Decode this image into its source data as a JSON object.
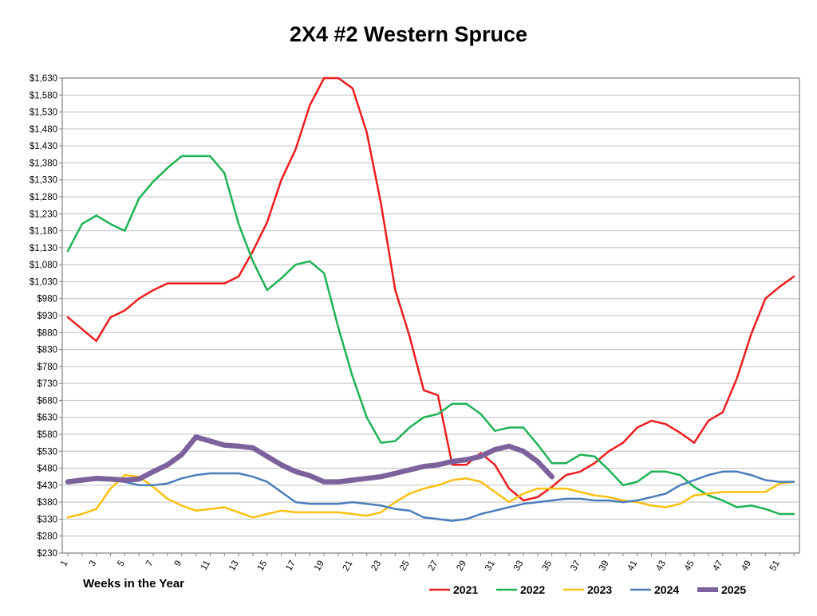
{
  "chart_data": {
    "type": "line",
    "title": "2X4 #2 Western Spruce",
    "xlabel": "Weeks in the Year",
    "ylabel": "",
    "xlim": [
      1,
      52
    ],
    "ylim": [
      230,
      1630
    ],
    "y_tick_step": 50,
    "x_ticks": [
      1,
      3,
      5,
      7,
      9,
      11,
      13,
      15,
      17,
      19,
      21,
      23,
      25,
      27,
      29,
      31,
      33,
      35,
      37,
      39,
      41,
      43,
      45,
      47,
      49,
      51
    ],
    "grid": "horizontal",
    "legend_position": "bottom",
    "series": [
      {
        "name": "2021",
        "color": "#ee1c1c",
        "width": 2.5,
        "x": [
          1,
          3,
          4,
          5,
          6,
          7,
          8,
          9,
          10,
          11,
          12,
          13,
          14,
          15,
          16,
          17,
          18,
          19,
          20,
          21,
          22,
          23,
          24,
          25,
          26,
          27,
          28,
          29,
          30,
          31,
          32,
          33,
          34,
          35,
          36,
          37,
          38,
          39,
          40,
          41,
          42,
          43,
          44,
          45,
          46,
          47,
          48,
          49,
          50,
          51,
          52
        ],
        "values": [
          925,
          855,
          925,
          945,
          980,
          1005,
          1025,
          1025,
          1025,
          1025,
          1025,
          1045,
          1120,
          1205,
          1330,
          1420,
          1550,
          1630,
          1630,
          1600,
          1470,
          1260,
          1005,
          870,
          710,
          695,
          490,
          490,
          525,
          490,
          420,
          385,
          395,
          425,
          460,
          470,
          495,
          530,
          555,
          600,
          620,
          610,
          585,
          555,
          620,
          645,
          745,
          875,
          980,
          1015,
          1045
        ]
      },
      {
        "name": "2022",
        "color": "#1db354",
        "width": 2.5,
        "x": [
          1,
          2,
          3,
          4,
          5,
          6,
          7,
          8,
          9,
          10,
          11,
          12,
          13,
          14,
          15,
          16,
          17,
          18,
          19,
          20,
          21,
          22,
          23,
          24,
          25,
          26,
          27,
          28,
          29,
          30,
          31,
          32,
          33,
          34,
          35,
          36,
          37,
          38,
          39,
          40,
          41,
          42,
          43,
          44,
          45,
          46,
          47,
          48,
          49,
          50,
          51,
          52
        ],
        "values": [
          1120,
          1200,
          1225,
          1200,
          1180,
          1275,
          1325,
          1365,
          1400,
          1400,
          1400,
          1350,
          1200,
          1090,
          1005,
          1040,
          1080,
          1090,
          1055,
          895,
          750,
          630,
          555,
          560,
          600,
          630,
          640,
          670,
          670,
          640,
          590,
          600,
          600,
          550,
          495,
          495,
          520,
          515,
          475,
          430,
          440,
          470,
          470,
          460,
          425,
          400,
          385,
          365,
          370,
          360,
          345,
          345
        ]
      },
      {
        "name": "2023",
        "color": "#fdc010",
        "width": 2.5,
        "x": [
          1,
          2,
          3,
          4,
          5,
          6,
          7,
          8,
          9,
          10,
          11,
          12,
          13,
          14,
          15,
          16,
          17,
          18,
          19,
          20,
          21,
          22,
          23,
          24,
          25,
          26,
          27,
          28,
          29,
          30,
          31,
          32,
          33,
          34,
          35,
          36,
          37,
          38,
          39,
          40,
          41,
          42,
          43,
          44,
          45,
          46,
          47,
          48,
          49,
          50,
          51,
          52
        ],
        "values": [
          335,
          345,
          360,
          420,
          460,
          455,
          425,
          390,
          370,
          355,
          360,
          365,
          350,
          335,
          345,
          355,
          350,
          350,
          350,
          350,
          345,
          340,
          350,
          380,
          405,
          420,
          430,
          445,
          450,
          440,
          410,
          380,
          405,
          420,
          420,
          420,
          410,
          400,
          395,
          385,
          380,
          370,
          365,
          375,
          400,
          405,
          410,
          410,
          410,
          410,
          435,
          440
        ]
      },
      {
        "name": "2024",
        "color": "#4a7ebb",
        "width": 2.5,
        "x": [
          1,
          2,
          3,
          4,
          5,
          6,
          7,
          8,
          9,
          10,
          11,
          12,
          13,
          14,
          15,
          16,
          17,
          18,
          19,
          20,
          21,
          22,
          23,
          24,
          25,
          26,
          27,
          28,
          29,
          30,
          31,
          32,
          33,
          34,
          35,
          36,
          37,
          38,
          39,
          40,
          41,
          42,
          43,
          44,
          45,
          46,
          47,
          48,
          49,
          50,
          51,
          52
        ],
        "values": [
          440,
          445,
          445,
          445,
          440,
          430,
          430,
          435,
          450,
          460,
          465,
          465,
          465,
          455,
          440,
          410,
          380,
          375,
          375,
          375,
          380,
          375,
          370,
          360,
          355,
          335,
          330,
          325,
          330,
          345,
          355,
          365,
          375,
          380,
          385,
          390,
          390,
          385,
          385,
          380,
          385,
          395,
          405,
          430,
          445,
          460,
          470,
          470,
          460,
          445,
          440,
          440
        ]
      },
      {
        "name": "2025",
        "color": "#7c619c",
        "width": 6.5,
        "x": [
          1,
          2,
          3,
          4,
          5,
          6,
          7,
          8,
          9,
          10,
          11,
          12,
          13,
          14,
          15,
          16,
          17,
          18,
          19,
          20,
          21,
          22,
          23,
          24,
          25,
          26,
          27,
          28,
          29,
          30,
          31,
          32,
          33,
          34,
          35
        ],
        "values": [
          440,
          445,
          450,
          448,
          445,
          448,
          470,
          490,
          520,
          572,
          560,
          548,
          545,
          540,
          515,
          490,
          470,
          458,
          440,
          440,
          445,
          450,
          455,
          465,
          475,
          485,
          490,
          500,
          505,
          515,
          535,
          545,
          530,
          500,
          455
        ]
      }
    ]
  }
}
